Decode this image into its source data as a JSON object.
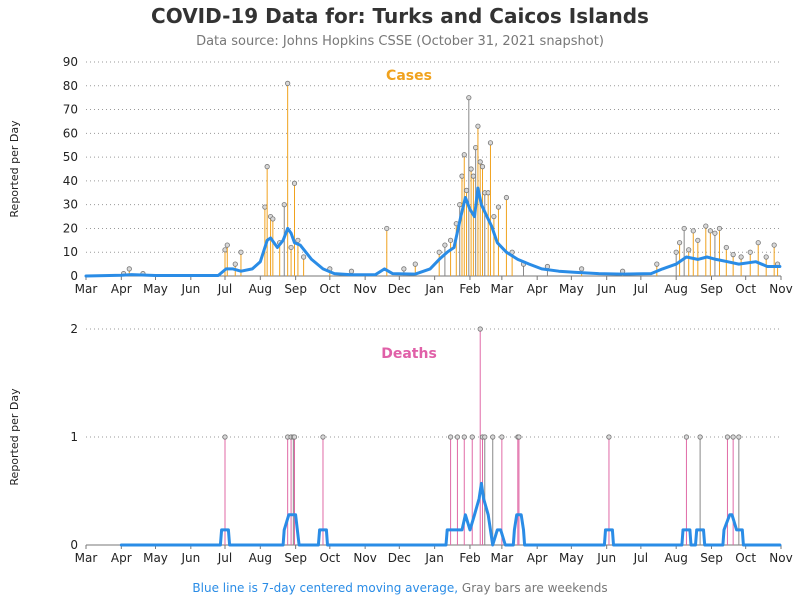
{
  "title": "COVID-19 Data for: Turks and Caicos Islands",
  "subtitle": "Data source: Johns Hopkins CSSE (October 31, 2021 snapshot)",
  "footnote": {
    "part1": "Blue line is 7-day centered moving average,",
    "part2": " Gray bars are weekends"
  },
  "colors": {
    "cases_bar": "#f0a21e",
    "deaths_bar": "#e06aa6",
    "weekend_bar": "#888888",
    "moving_avg": "#2a8ce6",
    "marker_fill": "#d8d8d8",
    "cases_title": "#f0a21e",
    "deaths_title": "#e060a8",
    "footnote_blue": "#2a8ce6",
    "footnote_gray": "#777777"
  },
  "chart_data": [
    {
      "type": "bar",
      "name": "cases",
      "title": "Cases",
      "ylabel": "Reported per Day",
      "ylim": [
        0,
        90
      ],
      "yticks": [
        0,
        10,
        20,
        30,
        40,
        50,
        60,
        70,
        80,
        90
      ],
      "x_ticks": [
        "Mar",
        "Apr",
        "May",
        "Jun",
        "Jul",
        "Aug",
        "Sep",
        "Oct",
        "Nov",
        "Dec",
        "Jan",
        "Feb",
        "Mar",
        "Apr",
        "May",
        "Jun",
        "Jul",
        "Aug",
        "Sep",
        "Oct",
        "Nov"
      ],
      "x_range": [
        "2020-03-01",
        "2021-11-01"
      ],
      "grid": "horizontal dotted",
      "spikes": [
        [
          "2020-04-03",
          1
        ],
        [
          "2020-04-08",
          3
        ],
        [
          "2020-04-20",
          1
        ],
        [
          "2020-07-01",
          11
        ],
        [
          "2020-07-03",
          13
        ],
        [
          "2020-07-10",
          5
        ],
        [
          "2020-07-15",
          10
        ],
        [
          "2020-08-05",
          29
        ],
        [
          "2020-08-07",
          46
        ],
        [
          "2020-08-10",
          25
        ],
        [
          "2020-08-12",
          24
        ],
        [
          "2020-08-18",
          14
        ],
        [
          "2020-08-22",
          30
        ],
        [
          "2020-08-25",
          81
        ],
        [
          "2020-08-28",
          12
        ],
        [
          "2020-08-31",
          39
        ],
        [
          "2020-09-03",
          15
        ],
        [
          "2020-09-08",
          8
        ],
        [
          "2020-10-01",
          3
        ],
        [
          "2020-10-20",
          2
        ],
        [
          "2020-11-20",
          20
        ],
        [
          "2020-12-05",
          3
        ],
        [
          "2020-12-15",
          5
        ],
        [
          "2021-01-05",
          10
        ],
        [
          "2021-01-10",
          13
        ],
        [
          "2021-01-15",
          15
        ],
        [
          "2021-01-20",
          22
        ],
        [
          "2021-01-23",
          30
        ],
        [
          "2021-01-25",
          42
        ],
        [
          "2021-01-27",
          51
        ],
        [
          "2021-01-29",
          36
        ],
        [
          "2021-01-31",
          75
        ],
        [
          "2021-02-02",
          45
        ],
        [
          "2021-02-04",
          42
        ],
        [
          "2021-02-06",
          54
        ],
        [
          "2021-02-08",
          63
        ],
        [
          "2021-02-10",
          48
        ],
        [
          "2021-02-12",
          46
        ],
        [
          "2021-02-14",
          35
        ],
        [
          "2021-02-17",
          35
        ],
        [
          "2021-02-19",
          56
        ],
        [
          "2021-02-22",
          25
        ],
        [
          "2021-02-26",
          29
        ],
        [
          "2021-03-05",
          33
        ],
        [
          "2021-03-10",
          10
        ],
        [
          "2021-03-20",
          5
        ],
        [
          "2021-04-10",
          4
        ],
        [
          "2021-05-10",
          3
        ],
        [
          "2021-06-15",
          2
        ],
        [
          "2021-07-15",
          5
        ],
        [
          "2021-08-01",
          10
        ],
        [
          "2021-08-04",
          14
        ],
        [
          "2021-08-08",
          20
        ],
        [
          "2021-08-12",
          11
        ],
        [
          "2021-08-16",
          19
        ],
        [
          "2021-08-20",
          15
        ],
        [
          "2021-08-27",
          21
        ],
        [
          "2021-08-31",
          19
        ],
        [
          "2021-09-04",
          18
        ],
        [
          "2021-09-08",
          20
        ],
        [
          "2021-09-14",
          12
        ],
        [
          "2021-09-20",
          9
        ],
        [
          "2021-09-27",
          8
        ],
        [
          "2021-10-05",
          10
        ],
        [
          "2021-10-12",
          14
        ],
        [
          "2021-10-19",
          8
        ],
        [
          "2021-10-26",
          13
        ],
        [
          "2021-10-29",
          5
        ]
      ],
      "moving_average": [
        [
          "2020-03-01",
          0
        ],
        [
          "2020-04-01",
          0.3
        ],
        [
          "2020-04-10",
          0.6
        ],
        [
          "2020-05-01",
          0.2
        ],
        [
          "2020-06-25",
          0.2
        ],
        [
          "2020-07-02",
          3
        ],
        [
          "2020-07-08",
          3
        ],
        [
          "2020-07-15",
          2
        ],
        [
          "2020-07-25",
          3
        ],
        [
          "2020-08-01",
          6
        ],
        [
          "2020-08-07",
          15
        ],
        [
          "2020-08-10",
          16
        ],
        [
          "2020-08-16",
          12
        ],
        [
          "2020-08-21",
          15
        ],
        [
          "2020-08-25",
          20
        ],
        [
          "2020-08-28",
          18
        ],
        [
          "2020-08-31",
          14
        ],
        [
          "2020-09-05",
          13
        ],
        [
          "2020-09-15",
          7
        ],
        [
          "2020-09-25",
          3
        ],
        [
          "2020-10-05",
          1
        ],
        [
          "2020-10-20",
          0.5
        ],
        [
          "2020-11-10",
          0.6
        ],
        [
          "2020-11-18",
          3
        ],
        [
          "2020-11-25",
          1
        ],
        [
          "2020-12-15",
          0.8
        ],
        [
          "2020-12-28",
          3
        ],
        [
          "2021-01-05",
          7
        ],
        [
          "2021-01-12",
          10
        ],
        [
          "2021-01-18",
          12
        ],
        [
          "2021-01-24",
          25
        ],
        [
          "2021-01-28",
          33
        ],
        [
          "2021-02-01",
          28
        ],
        [
          "2021-02-05",
          25
        ],
        [
          "2021-02-08",
          37
        ],
        [
          "2021-02-11",
          30
        ],
        [
          "2021-02-16",
          25
        ],
        [
          "2021-02-20",
          21
        ],
        [
          "2021-02-25",
          14
        ],
        [
          "2021-03-05",
          10
        ],
        [
          "2021-03-15",
          7
        ],
        [
          "2021-03-25",
          5
        ],
        [
          "2021-04-05",
          3
        ],
        [
          "2021-04-20",
          2
        ],
        [
          "2021-05-05",
          1.5
        ],
        [
          "2021-05-25",
          1
        ],
        [
          "2021-06-15",
          0.8
        ],
        [
          "2021-07-10",
          1
        ],
        [
          "2021-07-20",
          3
        ],
        [
          "2021-08-01",
          5
        ],
        [
          "2021-08-10",
          8
        ],
        [
          "2021-08-20",
          7
        ],
        [
          "2021-08-28",
          8
        ],
        [
          "2021-09-05",
          7
        ],
        [
          "2021-09-15",
          6
        ],
        [
          "2021-09-25",
          5
        ],
        [
          "2021-10-10",
          6
        ],
        [
          "2021-10-20",
          4
        ],
        [
          "2021-10-31",
          4
        ]
      ]
    },
    {
      "type": "bar",
      "name": "deaths",
      "title": "Deaths",
      "ylabel": "Reported per Day",
      "ylim": [
        0,
        2
      ],
      "yticks": [
        0,
        1,
        2
      ],
      "x_ticks": [
        "Mar",
        "Apr",
        "May",
        "Jun",
        "Jul",
        "Aug",
        "Sep",
        "Oct",
        "Nov",
        "Dec",
        "Jan",
        "Feb",
        "Mar",
        "Apr",
        "May",
        "Jun",
        "Jul",
        "Aug",
        "Sep",
        "Oct",
        "Nov"
      ],
      "x_range": [
        "2020-03-01",
        "2021-11-01"
      ],
      "grid": "horizontal dotted",
      "spikes": [
        [
          "2020-07-01",
          1
        ],
        [
          "2020-08-25",
          1
        ],
        [
          "2020-08-28",
          1
        ],
        [
          "2020-08-30",
          1
        ],
        [
          "2020-08-31",
          1
        ],
        [
          "2020-09-25",
          1
        ],
        [
          "2021-01-15",
          1
        ],
        [
          "2021-01-21",
          1
        ],
        [
          "2021-01-27",
          1
        ],
        [
          "2021-02-03",
          1
        ],
        [
          "2021-02-10",
          2
        ],
        [
          "2021-02-12",
          1
        ],
        [
          "2021-02-14",
          1
        ],
        [
          "2021-02-21",
          1
        ],
        [
          "2021-03-01",
          1
        ],
        [
          "2021-03-15",
          1
        ],
        [
          "2021-03-16",
          1
        ],
        [
          "2021-06-03",
          1
        ],
        [
          "2021-08-10",
          1
        ],
        [
          "2021-08-22",
          1
        ],
        [
          "2021-09-15",
          1
        ],
        [
          "2021-09-20",
          1
        ],
        [
          "2021-09-25",
          1
        ]
      ],
      "moving_average": [
        [
          "2020-04-01",
          0
        ],
        [
          "2020-06-27",
          0
        ],
        [
          "2020-06-28",
          0.14
        ],
        [
          "2020-07-04",
          0.14
        ],
        [
          "2020-07-05",
          0
        ],
        [
          "2020-08-21",
          0
        ],
        [
          "2020-08-22",
          0.14
        ],
        [
          "2020-08-26",
          0.28
        ],
        [
          "2020-08-29",
          0.28
        ],
        [
          "2020-09-01",
          0.28
        ],
        [
          "2020-09-04",
          0
        ],
        [
          "2020-09-21",
          0
        ],
        [
          "2020-09-22",
          0.14
        ],
        [
          "2020-09-28",
          0.14
        ],
        [
          "2020-09-29",
          0
        ],
        [
          "2021-01-11",
          0
        ],
        [
          "2021-01-12",
          0.14
        ],
        [
          "2021-01-18",
          0.14
        ],
        [
          "2021-01-21",
          0.14
        ],
        [
          "2021-01-25",
          0.14
        ],
        [
          "2021-01-28",
          0.28
        ],
        [
          "2021-02-01",
          0.14
        ],
        [
          "2021-02-05",
          0.28
        ],
        [
          "2021-02-09",
          0.43
        ],
        [
          "2021-02-11",
          0.57
        ],
        [
          "2021-02-13",
          0.43
        ],
        [
          "2021-02-17",
          0.28
        ],
        [
          "2021-02-21",
          0
        ],
        [
          "2021-02-25",
          0.14
        ],
        [
          "2021-02-28",
          0.14
        ],
        [
          "2021-03-04",
          0
        ],
        [
          "2021-03-11",
          0
        ],
        [
          "2021-03-12",
          0.14
        ],
        [
          "2021-03-14",
          0.28
        ],
        [
          "2021-03-18",
          0.28
        ],
        [
          "2021-03-20",
          0.14
        ],
        [
          "2021-03-21",
          0
        ],
        [
          "2021-05-30",
          0
        ],
        [
          "2021-05-31",
          0.14
        ],
        [
          "2021-06-06",
          0.14
        ],
        [
          "2021-06-07",
          0
        ],
        [
          "2021-08-06",
          0
        ],
        [
          "2021-08-07",
          0.14
        ],
        [
          "2021-08-13",
          0.14
        ],
        [
          "2021-08-14",
          0
        ],
        [
          "2021-08-18",
          0
        ],
        [
          "2021-08-19",
          0.14
        ],
        [
          "2021-08-25",
          0.14
        ],
        [
          "2021-08-26",
          0
        ],
        [
          "2021-09-11",
          0
        ],
        [
          "2021-09-12",
          0.14
        ],
        [
          "2021-09-17",
          0.28
        ],
        [
          "2021-09-19",
          0.28
        ],
        [
          "2021-09-23",
          0.14
        ],
        [
          "2021-09-28",
          0.14
        ],
        [
          "2021-09-29",
          0
        ],
        [
          "2021-10-31",
          0
        ]
      ]
    }
  ]
}
